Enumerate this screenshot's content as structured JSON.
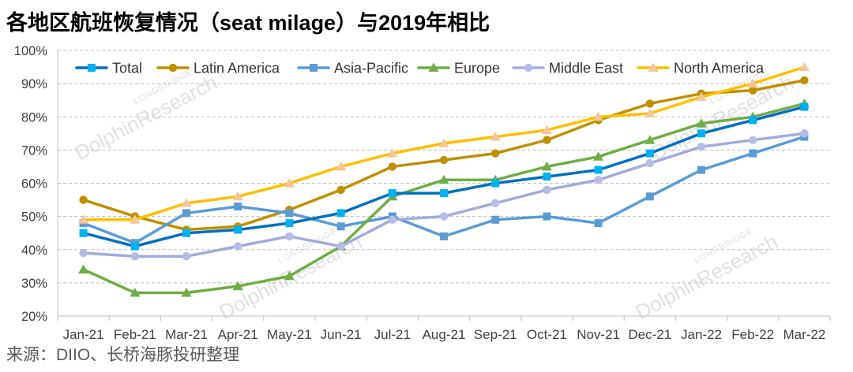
{
  "chart_data": {
    "type": "line",
    "title": "各地区航班恢复情况（seat milage）与2019年相比",
    "categories": [
      "Jan-21",
      "Feb-21",
      "Mar-21",
      "Apr-21",
      "May-21",
      "Jun-21",
      "Jul-21",
      "Aug-21",
      "Sep-21",
      "Oct-21",
      "Nov-21",
      "Dec-21",
      "Jan-22",
      "Feb-22",
      "Mar-22"
    ],
    "ylim": [
      20,
      100
    ],
    "ytick_labels": [
      "20%",
      "30%",
      "40%",
      "50%",
      "60%",
      "70%",
      "80%",
      "90%",
      "100%"
    ],
    "grid": true,
    "legend_position": "top",
    "series": [
      {
        "name": "Total",
        "values": [
          45,
          41,
          45,
          46,
          48,
          51,
          57,
          57,
          60,
          62,
          64,
          69,
          75,
          79,
          83
        ],
        "color": "#0070C0",
        "marker_color": "#00B0F0",
        "marker": "square"
      },
      {
        "name": "Latin America",
        "values": [
          55,
          50,
          46,
          47,
          52,
          58,
          65,
          67,
          69,
          73,
          79,
          84,
          87,
          88,
          91
        ],
        "color": "#BF9000",
        "marker_color": "#BF9000",
        "marker": "circle"
      },
      {
        "name": "Asia-Pacific",
        "values": [
          48,
          42,
          51,
          53,
          51,
          47,
          50,
          44,
          49,
          50,
          48,
          56,
          64,
          69,
          74
        ],
        "color": "#5B9BD5",
        "marker_color": "#5B9BD5",
        "marker": "square"
      },
      {
        "name": "Europe",
        "values": [
          34,
          27,
          27,
          29,
          32,
          41,
          56,
          61,
          61,
          65,
          68,
          73,
          78,
          80,
          84
        ],
        "color": "#70AD47",
        "marker_color": "#70AD47",
        "marker": "triangle"
      },
      {
        "name": "Middle East",
        "values": [
          39,
          38,
          38,
          41,
          44,
          41,
          49,
          50,
          54,
          58,
          61,
          66,
          71,
          73,
          75
        ],
        "color": "#A3ACDC",
        "marker_color": "#B5BCE6",
        "marker": "circle"
      },
      {
        "name": "North America",
        "values": [
          49,
          49,
          54,
          56,
          60,
          65,
          69,
          72,
          74,
          76,
          80,
          81,
          86,
          90,
          95
        ],
        "color": "#FFC000",
        "marker_color": "#F6C59A",
        "marker": "triangle"
      }
    ]
  },
  "source": "来源：DIIO、长桥海豚投研整理",
  "watermark": {
    "brand": "LONGBRIDGE",
    "name": "DolphinResearch"
  }
}
